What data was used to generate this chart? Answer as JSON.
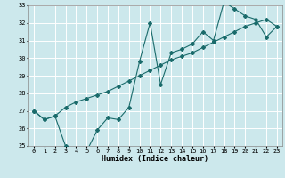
{
  "title": "",
  "xlabel": "Humidex (Indice chaleur)",
  "bg_color": "#cce8ec",
  "grid_color": "#ffffff",
  "line_color": "#1a6b6b",
  "line1_x": [
    0,
    1,
    2,
    3,
    4,
    5,
    6,
    7,
    8,
    9,
    10,
    11,
    12,
    13,
    14,
    15,
    16,
    17,
    18,
    19,
    20,
    21,
    22,
    23
  ],
  "line1_y": [
    27.0,
    26.5,
    26.7,
    25.0,
    24.8,
    24.7,
    25.9,
    26.6,
    26.5,
    27.2,
    29.8,
    32.0,
    28.5,
    30.3,
    30.5,
    30.8,
    31.5,
    31.0,
    33.2,
    32.8,
    32.4,
    32.2,
    31.2,
    31.8
  ],
  "line2_x": [
    0,
    1,
    2,
    3,
    4,
    5,
    6,
    7,
    8,
    9,
    10,
    11,
    12,
    13,
    14,
    15,
    16,
    17,
    18,
    19,
    20,
    21,
    22,
    23
  ],
  "line2_y": [
    27.0,
    26.5,
    26.7,
    27.2,
    27.5,
    27.7,
    27.9,
    28.1,
    28.4,
    28.7,
    29.0,
    29.3,
    29.6,
    29.9,
    30.1,
    30.3,
    30.6,
    30.9,
    31.2,
    31.5,
    31.8,
    32.0,
    32.2,
    31.8
  ],
  "ylim": [
    25,
    33
  ],
  "xlim": [
    -0.5,
    23.5
  ],
  "yticks": [
    25,
    26,
    27,
    28,
    29,
    30,
    31,
    32,
    33
  ],
  "xticks": [
    0,
    1,
    2,
    3,
    4,
    5,
    6,
    7,
    8,
    9,
    10,
    11,
    12,
    13,
    14,
    15,
    16,
    17,
    18,
    19,
    20,
    21,
    22,
    23
  ],
  "tick_fontsize": 5.0,
  "xlabel_fontsize": 6.0,
  "marker_size": 2.0,
  "line_width": 0.8
}
